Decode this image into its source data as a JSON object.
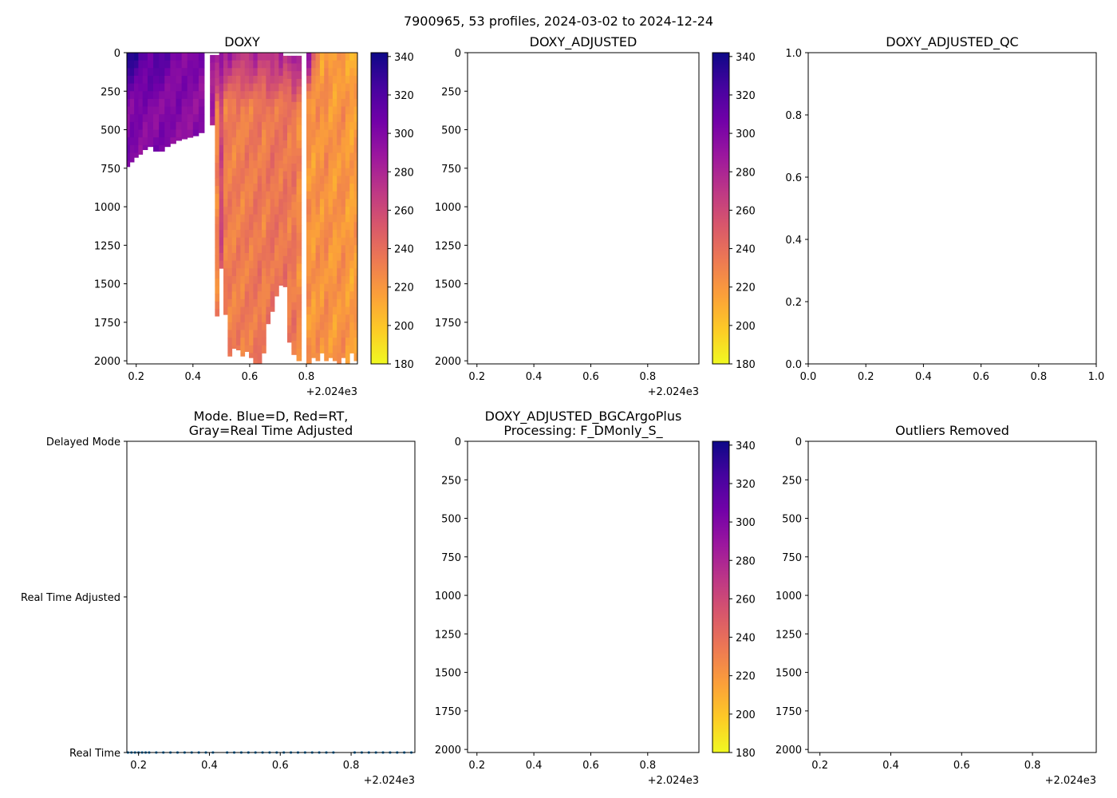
{
  "figure": {
    "suptitle": "7900965, 53 profiles, 2024-03-02 to 2024-12-24",
    "colormap": [
      "#0d0887",
      "#46039f",
      "#7201a8",
      "#9c179e",
      "#bd3786",
      "#d8576b",
      "#ed7953",
      "#fb9f3a",
      "#fdca26",
      "#f0f921"
    ],
    "axis_color": "#000000",
    "mode_point_color": "#1f77b4"
  },
  "chart_data": [
    {
      "id": "doxy",
      "type": "heatmap",
      "title": "DOXY",
      "xlim": [
        0.167,
        0.98
      ],
      "ylim": [
        2020,
        0
      ],
      "x_ticks": [
        0.2,
        0.4,
        0.6,
        0.8
      ],
      "x_tick_labels": [
        "0.2",
        "0.4",
        "0.6",
        "0.8"
      ],
      "x_offset_label": "+2.024e3",
      "y_ticks": [
        0,
        250,
        500,
        750,
        1000,
        1250,
        1500,
        1750,
        2000
      ],
      "y_tick_labels": [
        "0",
        "250",
        "500",
        "750",
        "1000",
        "1250",
        "1500",
        "1750",
        "2000"
      ],
      "colorbar": {
        "range": [
          180,
          342
        ],
        "ticks": [
          180,
          200,
          220,
          240,
          260,
          280,
          300,
          320,
          340
        ],
        "tick_labels": [
          "180",
          "200",
          "220",
          "240",
          "260",
          "280",
          "300",
          "320",
          "340"
        ]
      },
      "profiles_x": [
        0.17,
        0.185,
        0.2,
        0.215,
        0.23,
        0.25,
        0.27,
        0.29,
        0.31,
        0.33,
        0.35,
        0.37,
        0.39,
        0.41,
        0.43,
        0.45,
        0.47,
        0.485,
        0.5,
        0.515,
        0.53,
        0.545,
        0.56,
        0.575,
        0.59,
        0.605,
        0.62,
        0.635,
        0.65,
        0.665,
        0.68,
        0.695,
        0.71,
        0.725,
        0.74,
        0.755,
        0.775,
        0.79,
        0.81,
        0.825,
        0.84,
        0.855,
        0.87,
        0.885,
        0.9,
        0.915,
        0.93,
        0.945,
        0.96,
        0.975
      ],
      "profile_max_depth": [
        740,
        710,
        680,
        660,
        630,
        610,
        640,
        640,
        610,
        590,
        570,
        560,
        550,
        540,
        520,
        0,
        470,
        1710,
        1400,
        1700,
        1970,
        1920,
        1930,
        1970,
        1940,
        1980,
        2020,
        2020,
        1950,
        1760,
        1680,
        1580,
        1510,
        1520,
        1880,
        1960,
        2000,
        0,
        2020,
        1980,
        2000,
        1950,
        2000,
        1980,
        2000,
        2020,
        1980,
        2020,
        1950,
        2000
      ],
      "profile_surface_value": [
        335,
        335,
        330,
        322,
        318,
        315,
        318,
        315,
        312,
        305,
        305,
        302,
        298,
        300,
        298,
        0,
        292,
        300,
        295,
        282,
        288,
        280,
        275,
        278,
        270,
        278,
        282,
        270,
        272,
        280,
        278,
        270,
        282,
        270,
        282,
        300,
        290,
        0,
        292,
        245,
        230,
        215,
        225,
        215,
        210,
        218,
        222,
        215,
        210,
        208
      ],
      "profile_deep_value": [
        300,
        300,
        300,
        298,
        298,
        300,
        298,
        300,
        298,
        296,
        298,
        296,
        296,
        296,
        296,
        0,
        280,
        228,
        260,
        232,
        232,
        230,
        233,
        230,
        234,
        232,
        235,
        236,
        230,
        235,
        238,
        236,
        234,
        238,
        232,
        236,
        226,
        0,
        222,
        218,
        224,
        220,
        226,
        220,
        218,
        222,
        224,
        218,
        216,
        220
      ]
    },
    {
      "id": "doxy_adjusted",
      "type": "heatmap",
      "title": "DOXY_ADJUSTED",
      "xlim": [
        0.167,
        0.98
      ],
      "ylim": [
        2020,
        0
      ],
      "x_ticks": [
        0.2,
        0.4,
        0.6,
        0.8
      ],
      "x_tick_labels": [
        "0.2",
        "0.4",
        "0.6",
        "0.8"
      ],
      "x_offset_label": "+2.024e3",
      "y_ticks": [
        0,
        250,
        500,
        750,
        1000,
        1250,
        1500,
        1750,
        2000
      ],
      "y_tick_labels": [
        "0",
        "250",
        "500",
        "750",
        "1000",
        "1250",
        "1500",
        "1750",
        "2000"
      ],
      "colorbar": {
        "range": [
          180,
          342
        ],
        "ticks": [
          180,
          200,
          220,
          240,
          260,
          280,
          300,
          320,
          340
        ],
        "tick_labels": [
          "180",
          "200",
          "220",
          "240",
          "260",
          "280",
          "300",
          "320",
          "340"
        ]
      }
    },
    {
      "id": "doxy_adjusted_qc",
      "type": "scatter",
      "title": "DOXY_ADJUSTED_QC",
      "xlim": [
        0,
        1
      ],
      "ylim": [
        0,
        1
      ],
      "x_ticks": [
        0,
        0.2,
        0.4,
        0.6,
        0.8,
        1.0
      ],
      "x_tick_labels": [
        "0.0",
        "0.2",
        "0.4",
        "0.6",
        "0.8",
        "1.0"
      ],
      "y_ticks": [
        0,
        0.2,
        0.4,
        0.6,
        0.8,
        1.0
      ],
      "y_tick_labels": [
        "0.0",
        "0.2",
        "0.4",
        "0.6",
        "0.8",
        "1.0"
      ]
    },
    {
      "id": "mode",
      "type": "scatter",
      "title_lines": [
        "Mode. Blue=D, Red=RT,",
        "Gray=Real Time Adjusted"
      ],
      "xlim": [
        0.167,
        0.98
      ],
      "ylim": [
        0,
        2
      ],
      "x_ticks": [
        0.2,
        0.4,
        0.6,
        0.8
      ],
      "x_tick_labels": [
        "0.2",
        "0.4",
        "0.6",
        "0.8"
      ],
      "x_offset_label": "+2.024e3",
      "y_ticks": [
        2,
        1,
        0
      ],
      "y_tick_labels": [
        "Delayed Mode",
        "Real Time Adjusted",
        "Real Time"
      ],
      "points_x": [
        0.17,
        0.18,
        0.19,
        0.2,
        0.21,
        0.22,
        0.23,
        0.25,
        0.27,
        0.29,
        0.31,
        0.33,
        0.35,
        0.37,
        0.39,
        0.41,
        0.45,
        0.47,
        0.49,
        0.51,
        0.53,
        0.55,
        0.57,
        0.59,
        0.61,
        0.63,
        0.65,
        0.67,
        0.69,
        0.71,
        0.73,
        0.75,
        0.81,
        0.83,
        0.85,
        0.87,
        0.89,
        0.91,
        0.93,
        0.95,
        0.97
      ],
      "points_y": 0
    },
    {
      "id": "bgcargoplus",
      "type": "heatmap",
      "title_lines": [
        "DOXY_ADJUSTED_BGCArgoPlus",
        "Processing: F_DMonly_S_"
      ],
      "xlim": [
        0.167,
        0.98
      ],
      "ylim": [
        2020,
        0
      ],
      "x_ticks": [
        0.2,
        0.4,
        0.6,
        0.8
      ],
      "x_tick_labels": [
        "0.2",
        "0.4",
        "0.6",
        "0.8"
      ],
      "x_offset_label": "+2.024e3",
      "y_ticks": [
        0,
        250,
        500,
        750,
        1000,
        1250,
        1500,
        1750,
        2000
      ],
      "y_tick_labels": [
        "0",
        "250",
        "500",
        "750",
        "1000",
        "1250",
        "1500",
        "1750",
        "2000"
      ],
      "colorbar": {
        "range": [
          180,
          342
        ],
        "ticks": [
          180,
          200,
          220,
          240,
          260,
          280,
          300,
          320,
          340
        ],
        "tick_labels": [
          "180",
          "200",
          "220",
          "240",
          "260",
          "280",
          "300",
          "320",
          "340"
        ]
      }
    },
    {
      "id": "outliers",
      "type": "heatmap",
      "title": "Outliers Removed",
      "xlim": [
        0.167,
        0.98
      ],
      "ylim": [
        2020,
        0
      ],
      "x_ticks": [
        0.2,
        0.4,
        0.6,
        0.8
      ],
      "x_tick_labels": [
        "0.2",
        "0.4",
        "0.6",
        "0.8"
      ],
      "x_offset_label": "+2.024e3",
      "y_ticks": [
        0,
        250,
        500,
        750,
        1000,
        1250,
        1500,
        1750,
        2000
      ],
      "y_tick_labels": [
        "0",
        "250",
        "500",
        "750",
        "1000",
        "1250",
        "1500",
        "1750",
        "2000"
      ]
    }
  ]
}
